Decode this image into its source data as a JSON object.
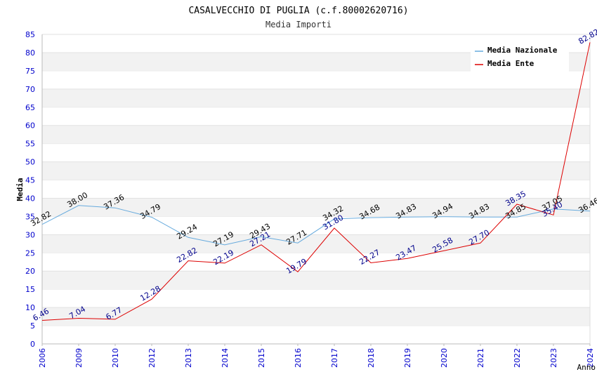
{
  "chart_data": {
    "type": "line",
    "title": "CASALVECCHIO DI PUGLIA (c.f.80002620716)",
    "subtitle": "Media Importi",
    "xlabel": "Anno",
    "ylabel": "Media",
    "ylim": [
      0,
      85
    ],
    "ytick_step": 5,
    "grid": "horizontal bands",
    "legend_position": "top-right",
    "categories": [
      "2006",
      "2009",
      "2010",
      "2012",
      "2013",
      "2014",
      "2015",
      "2016",
      "2017",
      "2018",
      "2019",
      "2020",
      "2021",
      "2022",
      "2023",
      "2024"
    ],
    "series": [
      {
        "name": "Media Nazionale",
        "color": "#66aadd",
        "label_color": "#000000",
        "values": [
          32.82,
          38.0,
          37.36,
          34.79,
          29.24,
          27.19,
          29.43,
          27.71,
          34.32,
          34.68,
          34.83,
          34.94,
          34.83,
          34.85,
          37.05,
          36.46
        ],
        "labels": [
          "32.82",
          "38.00",
          "37.36",
          "34.79",
          "29.24",
          "27.19",
          "29.43",
          "27.71",
          "34.32",
          "34.68",
          "34.83",
          "34.94",
          "34.83",
          "34.85",
          "37.05",
          "36.46"
        ]
      },
      {
        "name": "Media Ente",
        "color": "#dd0000",
        "label_color": "#00008b",
        "values": [
          6.46,
          7.04,
          6.77,
          12.28,
          22.82,
          22.19,
          27.21,
          19.79,
          31.8,
          22.27,
          23.47,
          25.58,
          27.7,
          38.35,
          35.4,
          82.82
        ],
        "labels": [
          "6.46",
          "7.04",
          "6.77",
          "12.28",
          "22.82",
          "22.19",
          "27.21",
          "19.79",
          "31.80",
          "22.27",
          "23.47",
          "25.58",
          "27.70",
          "38.35",
          "35.40",
          "82.82"
        ]
      }
    ]
  }
}
